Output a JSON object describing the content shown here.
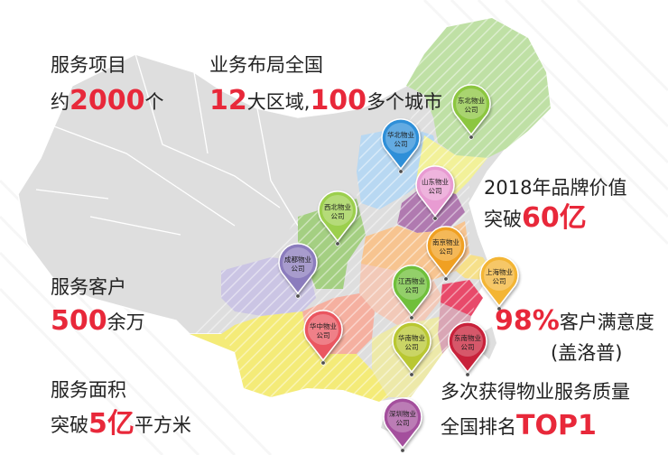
{
  "stats": {
    "projects": {
      "title": "服务项目",
      "prefix": "约",
      "value": "2000",
      "suffix": "个"
    },
    "layout": {
      "title": "业务布局全国",
      "value1": "12",
      "mid": "大区域,",
      "value2": "100",
      "suffix": "多个城市"
    },
    "brand": {
      "title": "2018年品牌价值",
      "prefix": "突破",
      "value": "60亿"
    },
    "customers": {
      "title": "服务客户",
      "value": "500",
      "suffix": "余万"
    },
    "satisfaction": {
      "value": "98%",
      "suffix": "客户满意度",
      "note": "(盖洛普)"
    },
    "area": {
      "title": "服务面积",
      "prefix": "突破",
      "value": "5亿",
      "suffix": "平方米"
    },
    "quality": {
      "line1": "多次获得物业服务质量",
      "line2_prefix": "全国排名",
      "line2_value": "TOP1"
    }
  },
  "regions": [
    {
      "id": "dongbei",
      "line1": "东北物业",
      "line2": "公司",
      "color": "#8cc63f"
    },
    {
      "id": "huabei",
      "line1": "华北物业",
      "line2": "公司",
      "color": "#2f8fd8"
    },
    {
      "id": "shandong",
      "line1": "山东物业",
      "line2": "公司",
      "color": "#e89bd2"
    },
    {
      "id": "xibei",
      "line1": "西北物业",
      "line2": "公司",
      "color": "#9ccf4d"
    },
    {
      "id": "nanjing",
      "line1": "南京物业",
      "line2": "公司",
      "color": "#f0a020"
    },
    {
      "id": "chengdu",
      "line1": "成都物业",
      "line2": "公司",
      "color": "#8b7bbd"
    },
    {
      "id": "jiangxi",
      "line1": "江西物业",
      "line2": "公司",
      "color": "#6fbf3a"
    },
    {
      "id": "shanghai",
      "line1": "上海物业",
      "line2": "公司",
      "color": "#f3b535"
    },
    {
      "id": "huazhong",
      "line1": "华中物业",
      "line2": "公司",
      "color": "#ea5660"
    },
    {
      "id": "huanan",
      "line1": "华南物业",
      "line2": "公司",
      "color": "#b9c732"
    },
    {
      "id": "dongnan",
      "line1": "东南物业",
      "line2": "公司",
      "color": "#c8203a"
    },
    {
      "id": "shenzhen",
      "line1": "深圳物业",
      "line2": "公司",
      "color": "#a4509d"
    }
  ]
}
